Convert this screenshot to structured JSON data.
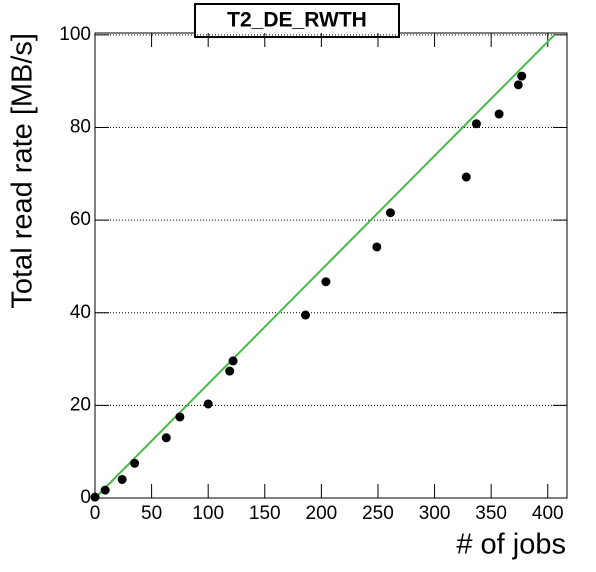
{
  "chart_data": {
    "type": "scatter",
    "title": "T2_DE_RWTH",
    "x_label": "# of jobs",
    "y_label": "Total read rate [MB/s]",
    "xlim": [
      0,
      417
    ],
    "ylim": [
      0,
      100.4
    ],
    "xticks": [
      0,
      50,
      100,
      150,
      200,
      250,
      300,
      350,
      400
    ],
    "yticks": [
      0,
      20,
      40,
      60,
      80,
      100
    ],
    "grid": true,
    "series": [
      {
        "color": "#000000",
        "x": [
          0,
          9,
          24,
          35,
          63,
          75,
          100,
          119,
          122,
          186,
          204,
          249,
          261,
          328,
          337,
          357,
          374,
          377
        ],
        "values": [
          0.2,
          1.7,
          4,
          7.5,
          13,
          17.5,
          20.3,
          27.4,
          29.6,
          39.5,
          46.7,
          54.2,
          61.6,
          69.3,
          80.8,
          82.9,
          89.2,
          91.1
        ]
      }
    ],
    "fit": {
      "type": "line",
      "color": "#44bb44",
      "x": [
        0,
        406
      ],
      "values": [
        0,
        100
      ]
    }
  }
}
